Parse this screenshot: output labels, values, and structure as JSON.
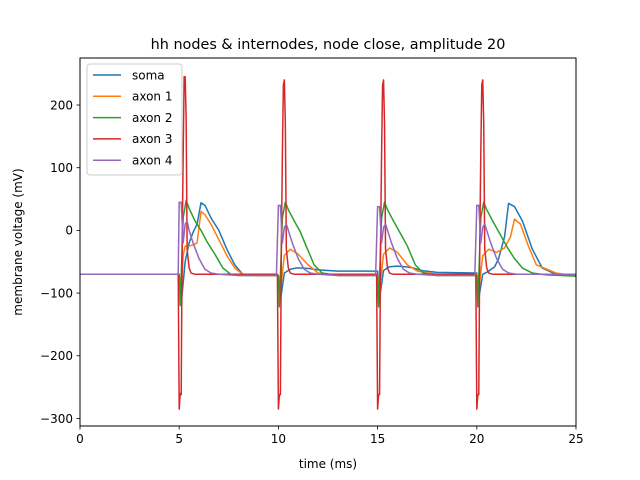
{
  "chart_data": {
    "type": "line",
    "title": "hh nodes & internodes, node close, amplitude 20",
    "xlabel": "time (ms)",
    "ylabel": "membrane voltage (mV)",
    "xlim": [
      0,
      25
    ],
    "ylim": [
      -312,
      275
    ],
    "xticks": [
      0,
      5,
      10,
      15,
      20,
      25
    ],
    "yticks": [
      -300,
      -200,
      -100,
      0,
      100,
      200
    ],
    "grid": false,
    "legend_position": "top-left",
    "series": [
      {
        "name": "soma",
        "color": "#1f77b4",
        "x": [
          0,
          5.0,
          5.1,
          5.3,
          5.5,
          5.7,
          5.9,
          6.1,
          6.3,
          6.6,
          7.0,
          7.4,
          7.8,
          8.2,
          8.8,
          9.5,
          10.0,
          10.1,
          10.3,
          10.6,
          10.9,
          11.2,
          11.6,
          12,
          13,
          15.0,
          15.1,
          15.3,
          15.6,
          16.0,
          16.4,
          16.8,
          17.2,
          18,
          20.0,
          20.1,
          20.3,
          20.6,
          20.9,
          21.1,
          21.4,
          21.6,
          21.9,
          22.3,
          22.8,
          23.3,
          24,
          25
        ],
        "y": [
          -70,
          -70,
          -118,
          -50,
          -20,
          -3,
          10,
          44,
          40,
          20,
          0,
          -30,
          -55,
          -70,
          -72,
          -72,
          -72,
          -112,
          -68,
          -62,
          -60,
          -60,
          -61,
          -63,
          -65,
          -65,
          -108,
          -64,
          -58,
          -57,
          -58,
          -60,
          -64,
          -67,
          -68,
          -108,
          -70,
          -65,
          -58,
          -45,
          -10,
          43,
          38,
          15,
          -30,
          -60,
          -70,
          -72
        ]
      },
      {
        "name": "axon 1",
        "color": "#ff7f0e",
        "x": [
          0,
          5.0,
          5.1,
          5.2,
          5.3,
          5.5,
          5.7,
          5.9,
          6.1,
          6.3,
          6.6,
          7.0,
          7.4,
          7.8,
          8.2,
          9,
          10.0,
          10.1,
          10.3,
          10.6,
          11.0,
          11.5,
          12,
          13,
          15.0,
          15.1,
          15.3,
          15.6,
          16.0,
          16.5,
          17,
          18,
          20.0,
          20.1,
          20.3,
          20.6,
          21.0,
          21.4,
          21.7,
          21.9,
          22.2,
          22.6,
          23,
          24,
          25
        ],
        "y": [
          -70,
          -70,
          -105,
          -40,
          -25,
          -25,
          -23,
          -20,
          30,
          25,
          10,
          -15,
          -40,
          -60,
          -70,
          -72,
          -72,
          -98,
          -40,
          -30,
          -38,
          -55,
          -68,
          -72,
          -72,
          -95,
          -38,
          -28,
          -35,
          -55,
          -65,
          -70,
          -70,
          -95,
          -40,
          -30,
          -35,
          -28,
          -10,
          18,
          10,
          -25,
          -55,
          -68,
          -73
        ]
      },
      {
        "name": "axon 2",
        "color": "#2ca02c",
        "x": [
          0,
          5.0,
          5.05,
          5.2,
          5.35,
          5.5,
          5.8,
          6.1,
          6.4,
          6.8,
          7.2,
          7.6,
          8,
          9,
          10.0,
          10.05,
          10.2,
          10.35,
          10.5,
          10.8,
          11.1,
          11.4,
          11.8,
          12.2,
          13,
          15.0,
          15.05,
          15.2,
          15.35,
          15.5,
          15.8,
          16.1,
          16.5,
          16.9,
          17.3,
          18,
          20.0,
          20.05,
          20.2,
          20.35,
          20.5,
          20.8,
          21.1,
          21.5,
          21.9,
          22.3,
          22.8,
          23.5,
          25
        ],
        "y": [
          -70,
          -70,
          -120,
          20,
          48,
          35,
          15,
          0,
          -18,
          -38,
          -60,
          -70,
          -72,
          -72,
          -72,
          -122,
          20,
          45,
          33,
          15,
          -2,
          -25,
          -55,
          -68,
          -72,
          -72,
          -122,
          20,
          45,
          33,
          15,
          -2,
          -25,
          -55,
          -68,
          -72,
          -72,
          -122,
          20,
          45,
          33,
          15,
          -2,
          -25,
          -45,
          -60,
          -68,
          -71,
          -73
        ]
      },
      {
        "name": "axon 3",
        "color": "#d62728",
        "x": [
          0,
          4.95,
          5.0,
          5.05,
          5.1,
          5.15,
          5.2,
          5.25,
          5.3,
          5.35,
          5.4,
          5.5,
          5.6,
          5.8,
          6.2,
          7,
          9.9,
          9.95,
          10.0,
          10.05,
          10.1,
          10.15,
          10.2,
          10.25,
          10.3,
          10.35,
          10.4,
          10.5,
          10.6,
          10.8,
          11.2,
          12,
          14.9,
          14.95,
          15.0,
          15.05,
          15.1,
          15.15,
          15.2,
          15.25,
          15.3,
          15.35,
          15.4,
          15.5,
          15.6,
          15.8,
          16.2,
          17,
          19.9,
          19.95,
          20.0,
          20.05,
          20.1,
          20.15,
          20.2,
          20.25,
          20.3,
          20.35,
          20.4,
          20.5,
          20.6,
          20.8,
          21.2,
          22,
          25
        ],
        "y": [
          -70,
          -70,
          -285,
          -260,
          -262,
          -20,
          120,
          245,
          245,
          180,
          -30,
          -60,
          -68,
          -70,
          -70,
          -70,
          -70,
          -70,
          -285,
          -262,
          -262,
          -20,
          120,
          232,
          240,
          170,
          -30,
          -60,
          -68,
          -70,
          -70,
          -70,
          -70,
          -70,
          -285,
          -262,
          -262,
          -20,
          120,
          232,
          240,
          170,
          -30,
          -60,
          -68,
          -70,
          -70,
          -70,
          -70,
          -70,
          -285,
          -262,
          -262,
          -20,
          120,
          232,
          240,
          170,
          -30,
          -60,
          -68,
          -70,
          -70,
          -70,
          -70
        ]
      },
      {
        "name": "axon 4",
        "color": "#9467bd",
        "x": [
          0,
          4.95,
          5.0,
          5.1,
          5.2,
          5.3,
          5.4,
          5.5,
          5.7,
          6.0,
          6.3,
          6.6,
          7,
          8,
          9.9,
          10.0,
          10.1,
          10.2,
          10.3,
          10.4,
          10.5,
          10.7,
          11.0,
          11.3,
          11.6,
          12,
          13,
          14.9,
          15.0,
          15.1,
          15.2,
          15.3,
          15.4,
          15.5,
          15.7,
          16.0,
          16.3,
          16.6,
          17,
          18,
          19.9,
          20.0,
          20.1,
          20.2,
          20.3,
          20.4,
          20.5,
          20.7,
          21.0,
          21.3,
          21.6,
          22,
          25
        ],
        "y": [
          -70,
          -70,
          45,
          45,
          -20,
          10,
          15,
          0,
          -20,
          -45,
          -62,
          -68,
          -70,
          -72,
          -72,
          40,
          40,
          -20,
          5,
          10,
          0,
          -20,
          -45,
          -62,
          -68,
          -70,
          -72,
          -72,
          38,
          38,
          -20,
          5,
          10,
          0,
          -20,
          -45,
          -62,
          -68,
          -70,
          -72,
          -72,
          40,
          40,
          -20,
          5,
          10,
          0,
          -20,
          -45,
          -62,
          -68,
          -70,
          -70
        ]
      }
    ]
  }
}
